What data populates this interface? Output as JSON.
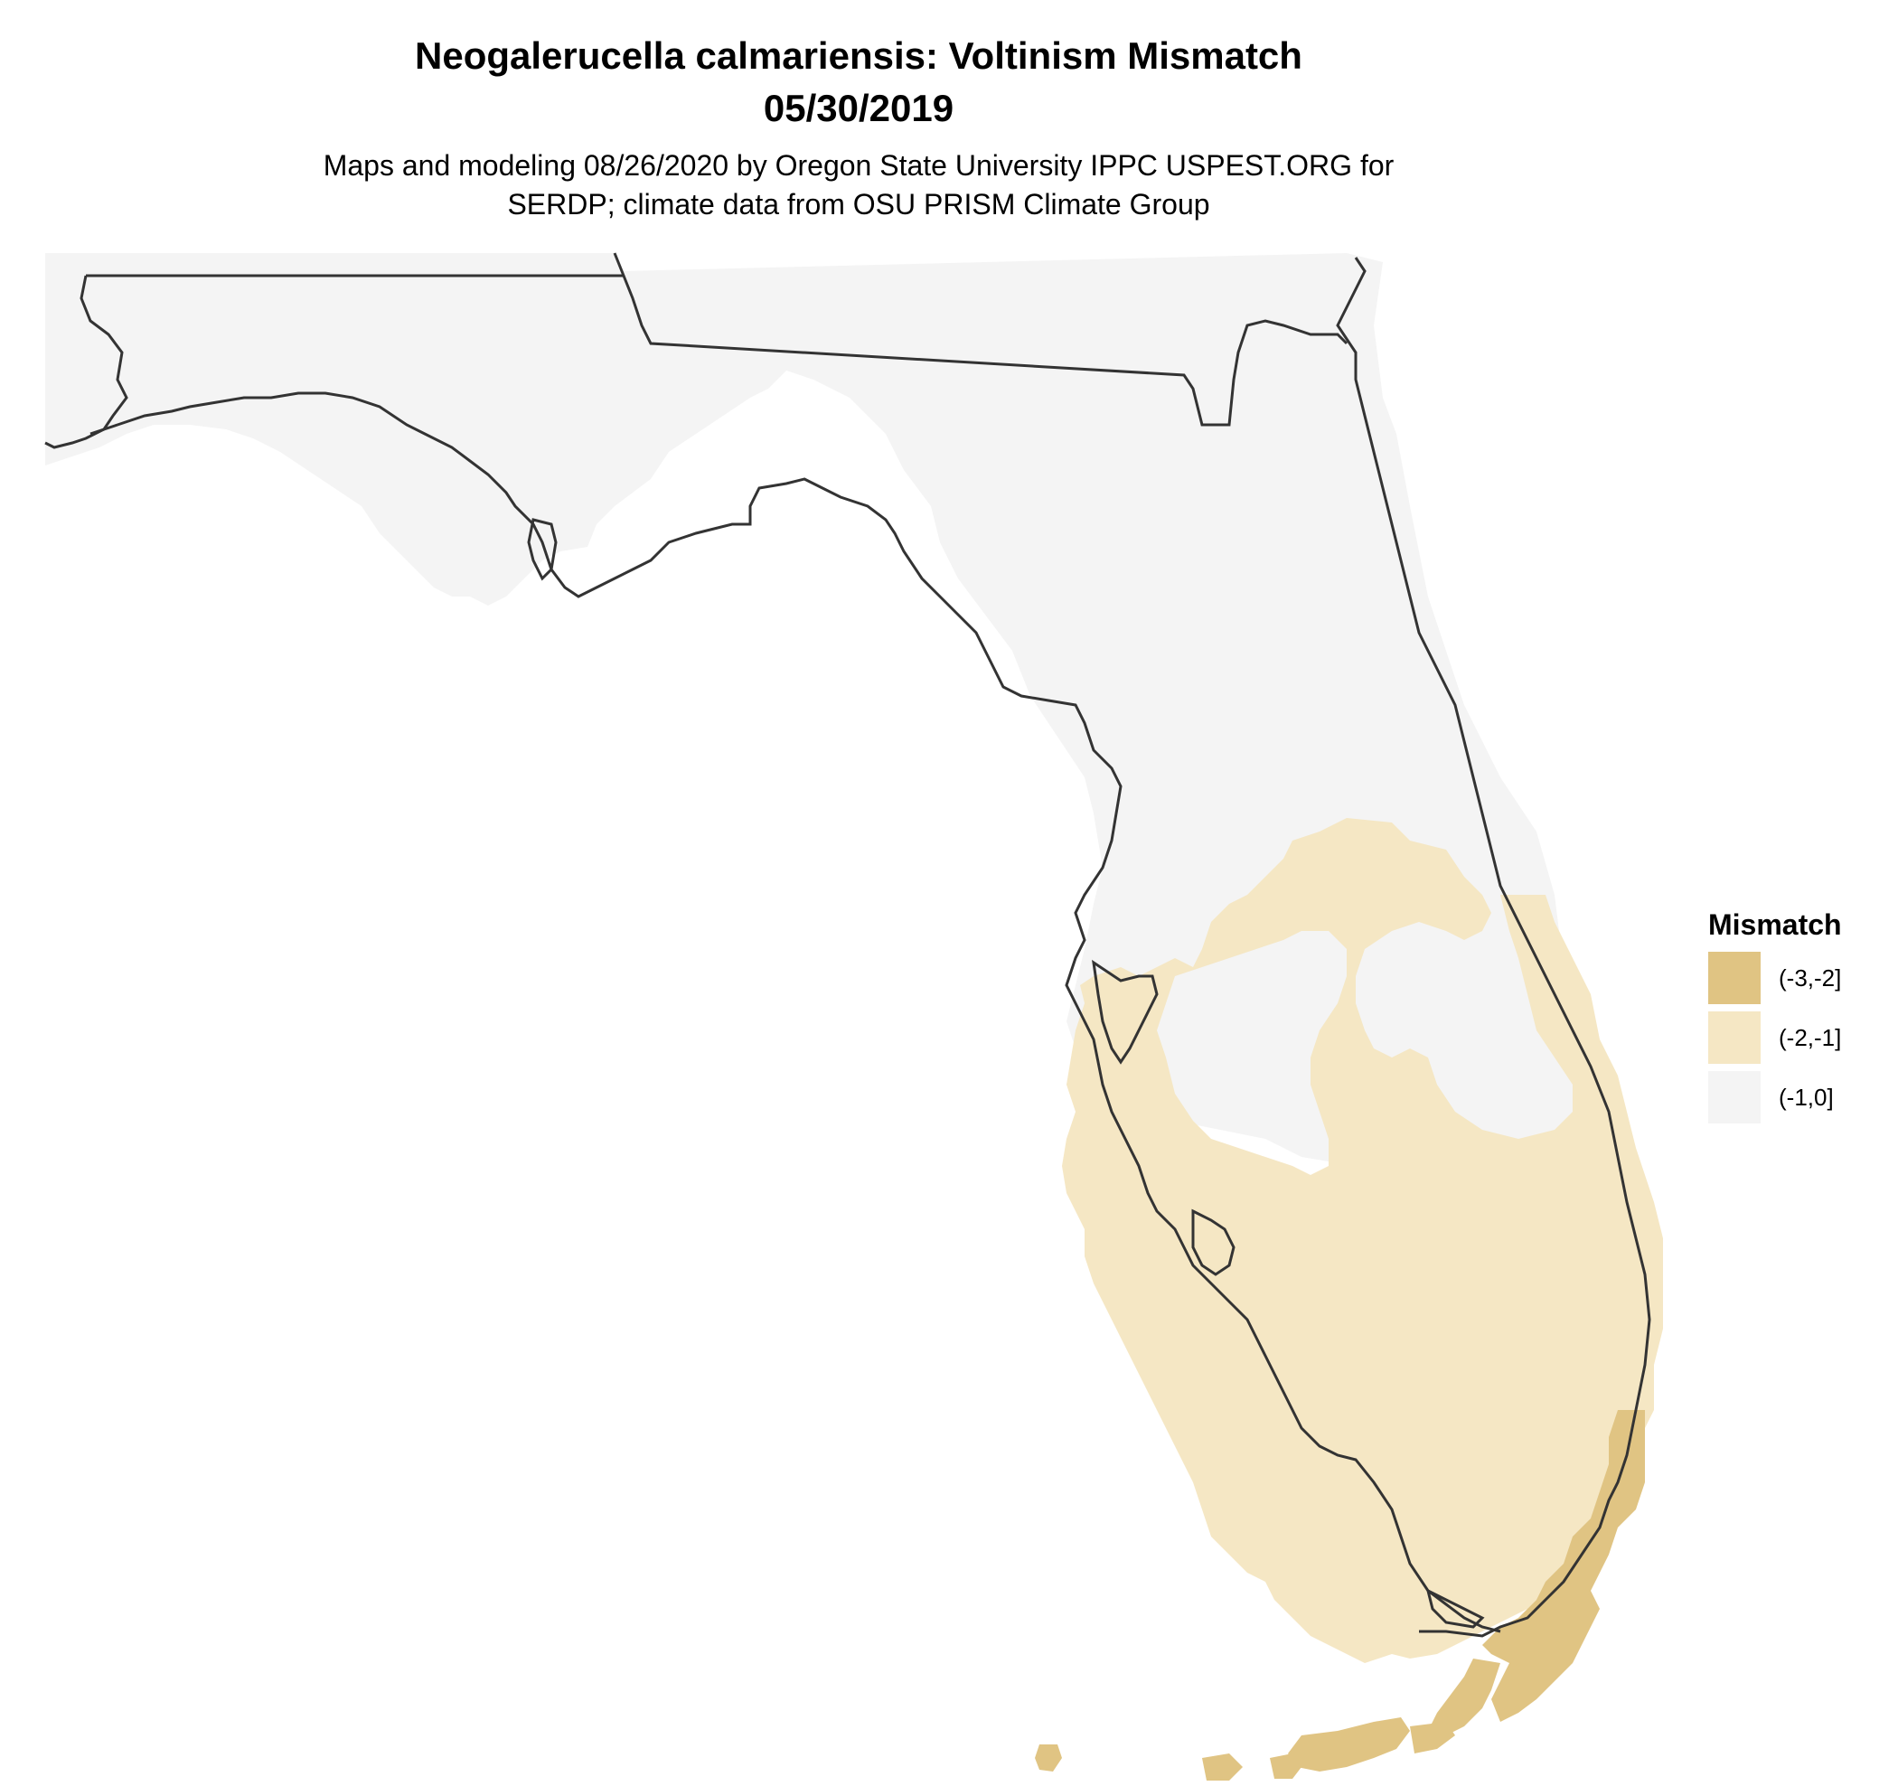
{
  "map": {
    "title": "Neogalerucella calmariensis: Voltinism Mismatch",
    "date": "05/30/2019",
    "subtitle_line1": "Maps and modeling 08/26/2020 by Oregon State University IPPC USPEST.ORG for",
    "subtitle_line2": "SERDP; climate data from OSU PRISM Climate Group",
    "region": "Florida"
  },
  "legend": {
    "title": "Mismatch",
    "classes": [
      {
        "label": "(-3,-2]",
        "color": "#E0C483"
      },
      {
        "label": "(-2,-1]",
        "color": "#F5E7C4"
      },
      {
        "label": "(-1,0]",
        "color": "#F4F4F4"
      }
    ]
  },
  "colors": {
    "outline": "#333333",
    "background": "#FFFFFF"
  }
}
